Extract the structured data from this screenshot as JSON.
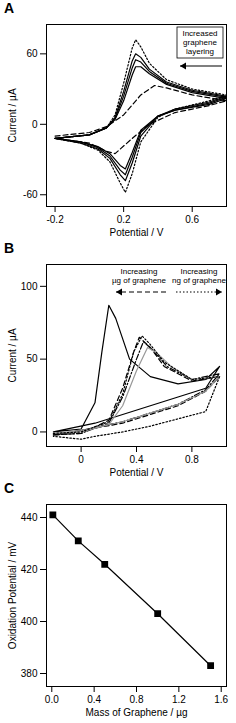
{
  "chart_data": [
    {
      "type": "line",
      "title": "A",
      "x_label": "Potential / V",
      "y_label": "Current / µA",
      "xlim": [
        -0.25,
        0.8
      ],
      "xticks": [
        -0.2,
        0.2,
        0.6
      ],
      "ylim": [
        -70,
        85
      ],
      "yticks": [
        -60,
        0,
        60
      ],
      "annotations": [
        "Increased\ngraphene\nlayering"
      ],
      "series": [
        {
          "color": "#000000",
          "line_style": "dotted",
          "x": [
            -0.2,
            0,
            0.1,
            0.15,
            0.2,
            0.25,
            0.27,
            0.3,
            0.35,
            0.45,
            0.6,
            0.8,
            0.7,
            0.5,
            0.4,
            0.3,
            0.25,
            0.21,
            0.18,
            0.12,
            0.05,
            -0.05,
            -0.2
          ],
          "values": [
            -12,
            -9,
            -3,
            8,
            35,
            65,
            72,
            66,
            52,
            38,
            30,
            25,
            20,
            13,
            6,
            -15,
            -42,
            -58,
            -50,
            -32,
            -22,
            -16,
            -12
          ]
        },
        {
          "color": "#000000",
          "line_style": "solid",
          "x": [
            -0.2,
            0,
            0.1,
            0.15,
            0.2,
            0.25,
            0.27,
            0.3,
            0.35,
            0.45,
            0.6,
            0.8,
            0.7,
            0.5,
            0.4,
            0.3,
            0.25,
            0.21,
            0.18,
            0.12,
            0.05,
            -0.05,
            -0.2
          ],
          "values": [
            -12,
            -9,
            -3,
            6,
            28,
            54,
            60,
            57,
            47,
            36,
            29,
            24,
            19,
            13,
            7,
            -10,
            -33,
            -48,
            -43,
            -29,
            -21,
            -16,
            -12
          ]
        },
        {
          "color": "#000000",
          "line_style": "solid",
          "x": [
            -0.2,
            0,
            0.1,
            0.15,
            0.2,
            0.25,
            0.27,
            0.3,
            0.35,
            0.45,
            0.6,
            0.8,
            0.7,
            0.5,
            0.4,
            0.3,
            0.25,
            0.21,
            0.18,
            0.12,
            0.05,
            -0.05,
            -0.2
          ],
          "values": [
            -12,
            -9,
            -3,
            5,
            24,
            48,
            55,
            53,
            45,
            35,
            28,
            23,
            18,
            12,
            7,
            -7,
            -28,
            -43,
            -39,
            -27,
            -20,
            -15,
            -12
          ]
        },
        {
          "color": "#000000",
          "line_style": "solid",
          "x": [
            -0.2,
            0,
            0.1,
            0.15,
            0.2,
            0.25,
            0.27,
            0.3,
            0.35,
            0.45,
            0.6,
            0.8,
            0.7,
            0.5,
            0.4,
            0.3,
            0.25,
            0.21,
            0.18,
            0.12,
            0.05,
            -0.05,
            -0.2
          ],
          "values": [
            -12,
            -9,
            -3,
            4,
            20,
            42,
            49,
            49,
            43,
            34,
            27,
            22,
            17,
            12,
            7,
            -5,
            -24,
            -38,
            -35,
            -25,
            -19,
            -15,
            -12
          ]
        },
        {
          "color": "#000000",
          "line_style": "dashed",
          "x": [
            -0.2,
            0,
            0.1,
            0.2,
            0.3,
            0.38,
            0.45,
            0.6,
            0.8,
            0.7,
            0.5,
            0.35,
            0.25,
            0.15,
            0.1,
            0,
            -0.2
          ],
          "values": [
            -10,
            -7,
            -2,
            8,
            25,
            33,
            31,
            25,
            20,
            16,
            10,
            0,
            -12,
            -25,
            -23,
            -16,
            -12
          ]
        }
      ]
    },
    {
      "type": "line",
      "title": "B",
      "x_label": "Potential / V",
      "y_label": "Current / µA",
      "xlim": [
        -0.25,
        1.05
      ],
      "xticks": [
        0,
        0.4,
        0.8
      ],
      "ylim": [
        -10,
        115
      ],
      "yticks": [
        0,
        50,
        100
      ],
      "annotations": [
        "Increasing\nµg of graphene",
        "Increasing\nng of graphene"
      ],
      "series": [
        {
          "color": "#000000",
          "line_style": "solid",
          "x": [
            -0.2,
            0,
            0.1,
            0.15,
            0.2,
            0.25,
            0.35,
            0.5,
            0.7,
            0.9,
            1.0,
            0.9,
            0.7,
            0.5,
            0.3,
            0.1,
            -0.2
          ],
          "values": [
            0,
            2,
            20,
            55,
            87,
            78,
            50,
            38,
            33,
            36,
            45,
            30,
            24,
            18,
            12,
            6,
            0
          ]
        },
        {
          "color": "#000000",
          "line_style": "dashed",
          "x": [
            -0.2,
            0,
            0.2,
            0.3,
            0.38,
            0.42,
            0.5,
            0.6,
            0.8,
            1.0,
            0.9,
            0.7,
            0.5,
            0.3,
            0,
            -0.2
          ],
          "values": [
            -2,
            -1,
            8,
            30,
            55,
            65,
            58,
            45,
            35,
            38,
            28,
            18,
            12,
            6,
            1,
            -2
          ]
        },
        {
          "color": "#000000",
          "line_style": "dashdot",
          "x": [
            -0.2,
            0,
            0.2,
            0.3,
            0.4,
            0.45,
            0.52,
            0.62,
            0.8,
            1.0,
            0.9,
            0.7,
            0.5,
            0.3,
            0,
            -0.2
          ],
          "values": [
            -2,
            -1,
            6,
            24,
            50,
            62,
            56,
            45,
            36,
            40,
            29,
            19,
            13,
            7,
            1,
            -2
          ]
        },
        {
          "color": "#999999",
          "line_style": "solid",
          "x": [
            -0.2,
            0,
            0.2,
            0.3,
            0.4,
            0.48,
            0.55,
            0.65,
            0.8,
            1.0,
            0.9,
            0.7,
            0.5,
            0.3,
            0,
            -0.2
          ],
          "values": [
            -1,
            0,
            5,
            18,
            42,
            58,
            54,
            45,
            36,
            38,
            28,
            19,
            13,
            7,
            1,
            -1
          ]
        },
        {
          "color": "#000000",
          "line_style": "dotted",
          "x": [
            -0.2,
            0,
            0.2,
            0.3,
            0.38,
            0.44,
            0.5,
            0.6,
            0.8,
            1.0,
            0.9,
            0.7,
            0.5,
            0.3,
            0.1,
            0,
            -0.2
          ],
          "values": [
            -1,
            0,
            7,
            26,
            55,
            66,
            60,
            48,
            36,
            38,
            14,
            9,
            4,
            0,
            -3,
            -5,
            -3
          ]
        }
      ]
    },
    {
      "type": "line",
      "title": "C",
      "x_label": "Mass of Graphene / µg",
      "y_label": "Oxidation Potential / mV",
      "xlim": [
        -0.05,
        1.65
      ],
      "xticks": [
        {
          "value": 0,
          "label": "0.0"
        },
        0.4,
        0.8,
        1.2,
        1.6
      ],
      "ylim": [
        375,
        445
      ],
      "yticks": [
        380,
        400,
        420,
        440
      ],
      "series": [
        {
          "color": "#000000",
          "line_style": "solid",
          "marker": "square",
          "x": [
            0.01,
            0.25,
            0.5,
            1.0,
            1.5
          ],
          "values": [
            441,
            431,
            422,
            403,
            383
          ]
        }
      ]
    }
  ]
}
